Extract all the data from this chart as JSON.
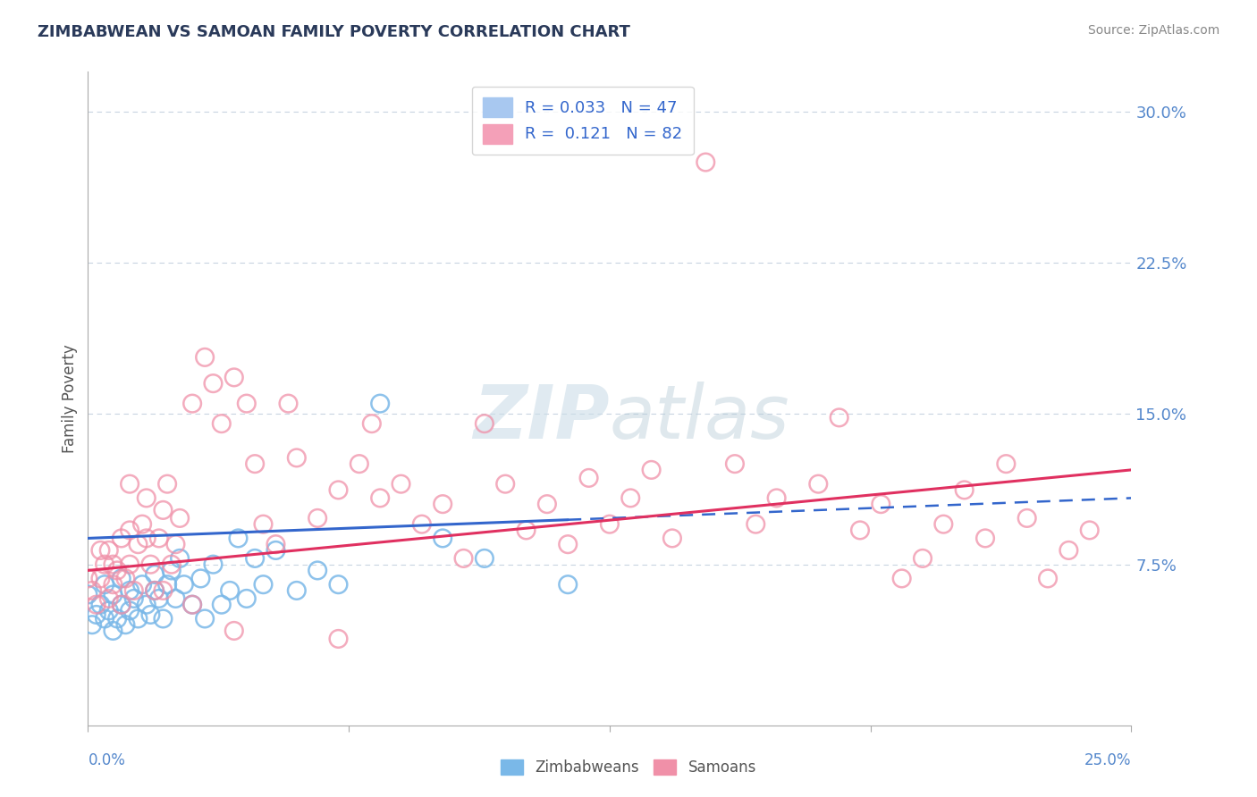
{
  "title": "ZIMBABWEAN VS SAMOAN FAMILY POVERTY CORRELATION CHART",
  "source": "Source: ZipAtlas.com",
  "ylabel": "Family Poverty",
  "xlim": [
    0.0,
    0.25
  ],
  "ylim": [
    -0.005,
    0.32
  ],
  "ytick_vals": [
    0.075,
    0.15,
    0.225,
    0.3
  ],
  "ytick_labels": [
    "7.5%",
    "15.0%",
    "22.5%",
    "30.0%"
  ],
  "zimbabwean_color": "#7ab8e8",
  "samoan_color": "#f090a8",
  "trend_zim_color": "#3366cc",
  "trend_sam_color": "#e03060",
  "watermark_color": "#dce8f0",
  "grid_color": "#c8d4e0",
  "zim_R": 0.033,
  "zim_N": 47,
  "sam_R": 0.121,
  "sam_N": 82,
  "zim_intercept": 0.088,
  "zim_slope": 0.08,
  "sam_intercept": 0.072,
  "sam_slope": 0.2,
  "zim_x": [
    0.0,
    0.001,
    0.002,
    0.003,
    0.004,
    0.004,
    0.005,
    0.006,
    0.006,
    0.007,
    0.008,
    0.008,
    0.009,
    0.01,
    0.01,
    0.011,
    0.012,
    0.013,
    0.014,
    0.015,
    0.016,
    0.016,
    0.017,
    0.018,
    0.019,
    0.02,
    0.021,
    0.022,
    0.023,
    0.025,
    0.027,
    0.028,
    0.03,
    0.032,
    0.034,
    0.036,
    0.038,
    0.04,
    0.042,
    0.045,
    0.05,
    0.055,
    0.06,
    0.07,
    0.085,
    0.095,
    0.115
  ],
  "zim_y": [
    0.06,
    0.045,
    0.05,
    0.055,
    0.048,
    0.065,
    0.052,
    0.042,
    0.06,
    0.048,
    0.055,
    0.068,
    0.045,
    0.052,
    0.062,
    0.058,
    0.048,
    0.065,
    0.055,
    0.05,
    0.062,
    0.07,
    0.058,
    0.048,
    0.065,
    0.072,
    0.058,
    0.078,
    0.065,
    0.055,
    0.068,
    0.048,
    0.075,
    0.055,
    0.062,
    0.088,
    0.058,
    0.078,
    0.065,
    0.082,
    0.062,
    0.072,
    0.065,
    0.155,
    0.088,
    0.078,
    0.065
  ],
  "sam_x": [
    0.001,
    0.002,
    0.003,
    0.004,
    0.005,
    0.005,
    0.006,
    0.007,
    0.008,
    0.008,
    0.009,
    0.01,
    0.01,
    0.011,
    0.012,
    0.013,
    0.014,
    0.015,
    0.016,
    0.017,
    0.018,
    0.019,
    0.02,
    0.021,
    0.022,
    0.025,
    0.028,
    0.03,
    0.032,
    0.035,
    0.038,
    0.04,
    0.042,
    0.045,
    0.048,
    0.05,
    0.055,
    0.06,
    0.065,
    0.068,
    0.07,
    0.075,
    0.08,
    0.085,
    0.09,
    0.095,
    0.1,
    0.105,
    0.11,
    0.115,
    0.12,
    0.125,
    0.13,
    0.135,
    0.14,
    0.148,
    0.155,
    0.16,
    0.165,
    0.175,
    0.18,
    0.185,
    0.19,
    0.195,
    0.2,
    0.205,
    0.21,
    0.215,
    0.22,
    0.225,
    0.23,
    0.235,
    0.24,
    0.0,
    0.003,
    0.006,
    0.01,
    0.014,
    0.018,
    0.025,
    0.035,
    0.06
  ],
  "sam_y": [
    0.062,
    0.055,
    0.068,
    0.075,
    0.058,
    0.082,
    0.065,
    0.072,
    0.055,
    0.088,
    0.068,
    0.075,
    0.092,
    0.062,
    0.085,
    0.095,
    0.108,
    0.075,
    0.062,
    0.088,
    0.102,
    0.115,
    0.075,
    0.085,
    0.098,
    0.155,
    0.178,
    0.165,
    0.145,
    0.168,
    0.155,
    0.125,
    0.095,
    0.085,
    0.155,
    0.128,
    0.098,
    0.112,
    0.125,
    0.145,
    0.108,
    0.115,
    0.095,
    0.105,
    0.078,
    0.145,
    0.115,
    0.092,
    0.105,
    0.085,
    0.118,
    0.095,
    0.108,
    0.122,
    0.088,
    0.275,
    0.125,
    0.095,
    0.108,
    0.115,
    0.148,
    0.092,
    0.105,
    0.068,
    0.078,
    0.095,
    0.112,
    0.088,
    0.125,
    0.098,
    0.068,
    0.082,
    0.092,
    0.068,
    0.082,
    0.075,
    0.115,
    0.088,
    0.062,
    0.055,
    0.042,
    0.038
  ]
}
